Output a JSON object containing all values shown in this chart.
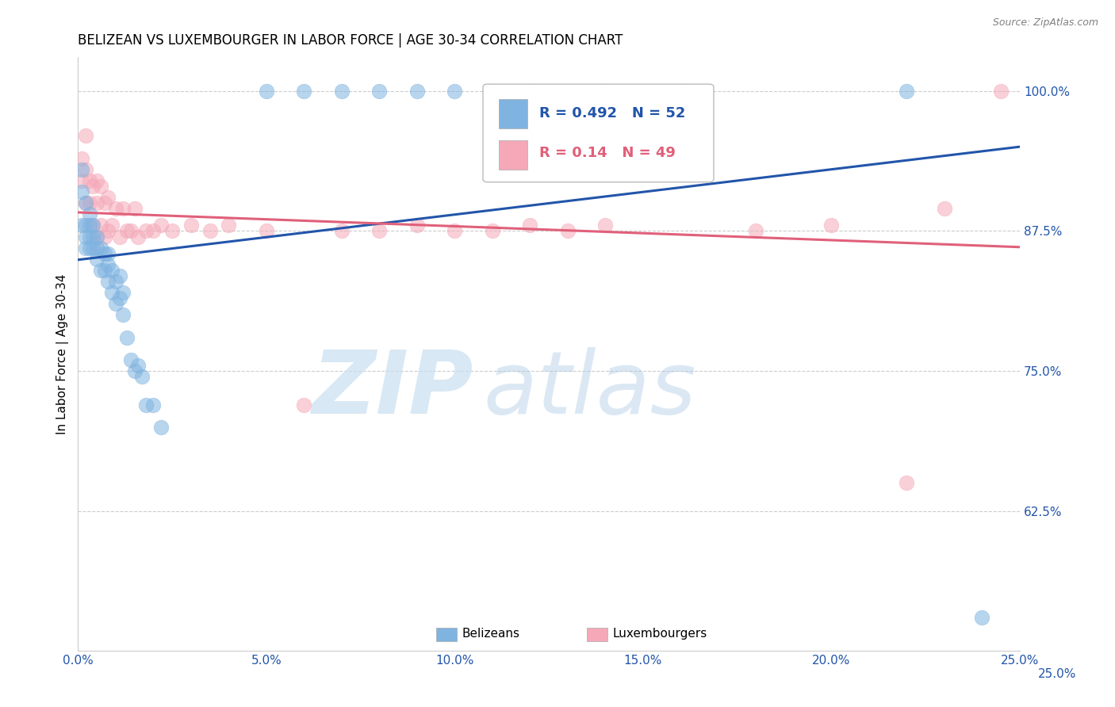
{
  "title": "BELIZEAN VS LUXEMBOURGER IN LABOR FORCE | AGE 30-34 CORRELATION CHART",
  "source": "Source: ZipAtlas.com",
  "ylabel": "In Labor Force | Age 30-34",
  "xlim": [
    0.0,
    0.25
  ],
  "ylim": [
    0.5,
    1.03
  ],
  "xticks": [
    0.0,
    0.05,
    0.1,
    0.15,
    0.2,
    0.25
  ],
  "xticklabels": [
    "0.0%",
    "5.0%",
    "10.0%",
    "15.0%",
    "20.0%",
    "25.0%"
  ],
  "yticks_right": [
    1.0,
    0.875,
    0.75,
    0.625
  ],
  "yticklabels_right": [
    "100.0%",
    "87.5%",
    "75.0%",
    "62.5%"
  ],
  "bottom_ylabel": "25.0%",
  "blue_color": "#7fb3e0",
  "pink_color": "#f5a8b8",
  "blue_line_color": "#2255aa",
  "pink_line_color": "#e0607a",
  "blue_R": 0.492,
  "blue_N": 52,
  "pink_R": 0.14,
  "pink_N": 49,
  "legend_label_blue": "Belizeans",
  "legend_label_pink": "Luxembourgers",
  "grid_color": "#cccccc",
  "title_fontsize": 12,
  "tick_label_color": "#2255aa",
  "blue_x": [
    0.001,
    0.001,
    0.001,
    0.002,
    0.002,
    0.002,
    0.002,
    0.003,
    0.003,
    0.003,
    0.003,
    0.004,
    0.004,
    0.004,
    0.005,
    0.005,
    0.005,
    0.006,
    0.006,
    0.007,
    0.007,
    0.008,
    0.008,
    0.008,
    0.009,
    0.009,
    0.01,
    0.01,
    0.011,
    0.011,
    0.012,
    0.012,
    0.013,
    0.014,
    0.015,
    0.016,
    0.017,
    0.018,
    0.02,
    0.022,
    0.05,
    0.06,
    0.07,
    0.08,
    0.09,
    0.1,
    0.11,
    0.12,
    0.14,
    0.16,
    0.22,
    0.24
  ],
  "blue_y": [
    0.93,
    0.91,
    0.88,
    0.9,
    0.88,
    0.87,
    0.86,
    0.89,
    0.88,
    0.87,
    0.86,
    0.88,
    0.87,
    0.86,
    0.87,
    0.86,
    0.85,
    0.86,
    0.84,
    0.855,
    0.84,
    0.855,
    0.845,
    0.83,
    0.84,
    0.82,
    0.83,
    0.81,
    0.835,
    0.815,
    0.82,
    0.8,
    0.78,
    0.76,
    0.75,
    0.755,
    0.745,
    0.72,
    0.72,
    0.7,
    1.0,
    1.0,
    1.0,
    1.0,
    1.0,
    1.0,
    1.0,
    1.0,
    1.0,
    1.0,
    1.0,
    0.53
  ],
  "pink_x": [
    0.001,
    0.001,
    0.002,
    0.002,
    0.002,
    0.003,
    0.003,
    0.004,
    0.004,
    0.005,
    0.005,
    0.005,
    0.006,
    0.006,
    0.007,
    0.007,
    0.008,
    0.008,
    0.009,
    0.01,
    0.011,
    0.012,
    0.013,
    0.014,
    0.015,
    0.016,
    0.018,
    0.02,
    0.022,
    0.025,
    0.03,
    0.035,
    0.04,
    0.05,
    0.06,
    0.07,
    0.08,
    0.09,
    0.1,
    0.11,
    0.12,
    0.13,
    0.14,
    0.16,
    0.18,
    0.2,
    0.22,
    0.23,
    0.245
  ],
  "pink_y": [
    0.94,
    0.92,
    0.96,
    0.93,
    0.9,
    0.92,
    0.9,
    0.915,
    0.88,
    0.92,
    0.9,
    0.87,
    0.915,
    0.88,
    0.9,
    0.87,
    0.905,
    0.875,
    0.88,
    0.895,
    0.87,
    0.895,
    0.875,
    0.875,
    0.895,
    0.87,
    0.875,
    0.875,
    0.88,
    0.875,
    0.88,
    0.875,
    0.88,
    0.875,
    0.72,
    0.875,
    0.875,
    0.88,
    0.875,
    0.875,
    0.88,
    0.875,
    0.88,
    0.97,
    0.875,
    0.88,
    0.65,
    0.895,
    1.0
  ]
}
